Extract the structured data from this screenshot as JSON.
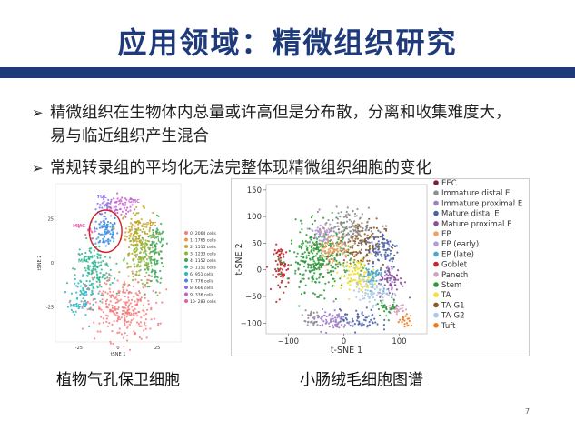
{
  "title": "应用领域：精微组织研究",
  "bullets": [
    {
      "marker": "➢",
      "text": "精微组织在生物体内总量或许高但是分布散，分离和收集难度大，易与临近组织产生混合"
    },
    {
      "marker": "➢",
      "text": "常规转录组的平均化无法完整体现精微组织细胞的变化"
    }
  ],
  "captions": [
    "植物气孔保卫细胞",
    "小肠绒毛细胞图谱"
  ],
  "page_number": "7",
  "chart_data": [
    {
      "type": "scatter",
      "title": "",
      "xlabel": "tSNE 1",
      "ylabel": "tSNE 2",
      "x_ticks": [
        "-25",
        "0",
        "25"
      ],
      "y_ticks": [
        "25",
        "0",
        "-25"
      ],
      "cluster_labels": [
        "YGC",
        "GMC",
        "MMC",
        "GC",
        "PDC",
        "EM",
        "LM",
        "MPC",
        "MPC_2",
        "PC"
      ],
      "legend": [
        "0- 2064 cells",
        "1- 1765 cells",
        "2- 1515 cells",
        "3- 1233 cells",
        "4- 1152 cells",
        "5- 1151 cells",
        "6- 951 cells",
        "7- 776 cells",
        "8- 666 cells",
        "9- 336 cells",
        "10- 283 cells"
      ],
      "legend_colors": [
        "#f47c7c",
        "#e89a3c",
        "#c9a227",
        "#8fb33a",
        "#3aa655",
        "#2fb58f",
        "#2eb3c4",
        "#3f8fe0",
        "#8a6fe0",
        "#c95bd4",
        "#e060a8"
      ],
      "clusters": [
        {
          "label": "YGC",
          "color": "#8a6fe0",
          "cx": -8,
          "cy": 32,
          "sx": 3,
          "sy": 3,
          "n": 30
        },
        {
          "label": "GMC",
          "color": "#c95bd4",
          "cx": 2,
          "cy": 32,
          "sx": 4,
          "sy": 3,
          "n": 50
        },
        {
          "label": "GC",
          "color": "#3f8fe0",
          "cx": -8,
          "cy": 18,
          "sx": 4,
          "sy": 5,
          "n": 90
        },
        {
          "label": "MMC",
          "color": "#e060a8",
          "cx": -18,
          "cy": 18,
          "sx": 2,
          "sy": 2,
          "n": 12
        },
        {
          "label": "PDC",
          "color": "#c9a227",
          "cx": 12,
          "cy": 18,
          "sx": 5,
          "sy": 6,
          "n": 110
        },
        {
          "label": "EM",
          "color": "#8fb33a",
          "cx": 14,
          "cy": 2,
          "sx": 5,
          "sy": 8,
          "n": 130
        },
        {
          "label": "LM",
          "color": "#3aa655",
          "cx": 24,
          "cy": 5,
          "sx": 3,
          "sy": 9,
          "n": 100
        },
        {
          "label": "MPC",
          "color": "#2fb58f",
          "cx": -15,
          "cy": -4,
          "sx": 6,
          "sy": 8,
          "n": 140
        },
        {
          "label": "MPC_2",
          "color": "#2eb3c4",
          "cx": -22,
          "cy": -18,
          "sx": 4,
          "sy": 6,
          "n": 70
        },
        {
          "label": "PC",
          "color": "#f47c7c",
          "cx": 2,
          "cy": -26,
          "sx": 11,
          "sy": 9,
          "n": 280
        }
      ],
      "xlim": [
        -40,
        40
      ],
      "ylim": [
        -45,
        45
      ]
    },
    {
      "type": "scatter",
      "title": "",
      "xlabel": "t-SNE 1",
      "ylabel": "t-SNE 2",
      "x_ticks": [
        -100,
        0,
        100
      ],
      "y_ticks": [
        150,
        100,
        50,
        0,
        -50,
        -100
      ],
      "xlim": [
        -140,
        150
      ],
      "ylim": [
        -120,
        160
      ],
      "legend": [
        {
          "name": "EEC",
          "color": "#7b1f3f"
        },
        {
          "name": "Immature distal E",
          "color": "#8e8e8e"
        },
        {
          "name": "Immature proximal E",
          "color": "#a07ec8"
        },
        {
          "name": "Mature distal E",
          "color": "#4a63a8"
        },
        {
          "name": "Mature proximal E",
          "color": "#8a4fa0"
        },
        {
          "name": "EP",
          "color": "#f0a060"
        },
        {
          "name": "EP (early)",
          "color": "#b49ad8"
        },
        {
          "name": "EP (late)",
          "color": "#4aa8c8"
        },
        {
          "name": "Goblet",
          "color": "#c0262c"
        },
        {
          "name": "Paneth",
          "color": "#d4a0c0"
        },
        {
          "name": "Stem",
          "color": "#2e9a3c"
        },
        {
          "name": "TA",
          "color": "#f0e03a"
        },
        {
          "name": "TA-G1",
          "color": "#8a5a2a"
        },
        {
          "name": "TA-G2",
          "color": "#a8c8e8"
        },
        {
          "name": "Tuft",
          "color": "#f07a1c"
        }
      ],
      "clusters": [
        {
          "name": "Goblet",
          "color": "#c0262c",
          "cx": -112,
          "cy": 2,
          "sx": 7,
          "sy": 22,
          "n": 70
        },
        {
          "name": "Stem",
          "color": "#2e9a3c",
          "cx": -45,
          "cy": 20,
          "sx": 28,
          "sy": 30,
          "n": 330
        },
        {
          "name": "TA-G1",
          "color": "#8a5a2a",
          "cx": 30,
          "cy": 50,
          "sx": 22,
          "sy": 22,
          "n": 140
        },
        {
          "name": "Immature distal E",
          "color": "#8e8e8e",
          "cx": 5,
          "cy": 80,
          "sx": 20,
          "sy": 18,
          "n": 120
        },
        {
          "name": "Mature distal E",
          "color": "#4a63a8",
          "cx": 70,
          "cy": 40,
          "sx": 15,
          "sy": 20,
          "n": 90
        },
        {
          "name": "Mature proximal E",
          "color": "#8a4fa0",
          "cx": 85,
          "cy": -20,
          "sx": 12,
          "sy": 15,
          "n": 70
        },
        {
          "name": "EP",
          "color": "#f0a060",
          "cx": -20,
          "cy": 40,
          "sx": 15,
          "sy": 15,
          "n": 80
        },
        {
          "name": "EP (early)",
          "color": "#b49ad8",
          "cx": -40,
          "cy": 70,
          "sx": 12,
          "sy": 10,
          "n": 50
        },
        {
          "name": "TA",
          "color": "#f0e03a",
          "cx": 25,
          "cy": -10,
          "sx": 15,
          "sy": 15,
          "n": 110
        },
        {
          "name": "TA-G2",
          "color": "#a8c8e8",
          "cx": 50,
          "cy": -40,
          "sx": 15,
          "sy": 12,
          "n": 80
        },
        {
          "name": "EP (late)",
          "color": "#4aa8c8",
          "cx": 50,
          "cy": -10,
          "sx": 10,
          "sy": 10,
          "n": 50
        },
        {
          "name": "Immature proximal E",
          "color": "#a07ec8",
          "cx": -25,
          "cy": -95,
          "sx": 20,
          "sy": 10,
          "n": 80
        },
        {
          "name": "Immature distal E",
          "color": "#8e8e8e",
          "cx": -60,
          "cy": -90,
          "sx": 8,
          "sy": 8,
          "n": 25
        },
        {
          "name": "Mature distal E",
          "color": "#4a63a8",
          "cx": 30,
          "cy": -95,
          "sx": 18,
          "sy": 10,
          "n": 60
        },
        {
          "name": "Paneth",
          "color": "#d4a0c0",
          "cx": 95,
          "cy": -70,
          "sx": 8,
          "sy": 10,
          "n": 30
        },
        {
          "name": "Tuft",
          "color": "#f07a1c",
          "cx": 112,
          "cy": -95,
          "sx": 6,
          "sy": 6,
          "n": 20
        },
        {
          "name": "Stem",
          "color": "#2e9a3c",
          "cx": 80,
          "cy": -70,
          "sx": 10,
          "sy": 8,
          "n": 30
        }
      ]
    }
  ]
}
